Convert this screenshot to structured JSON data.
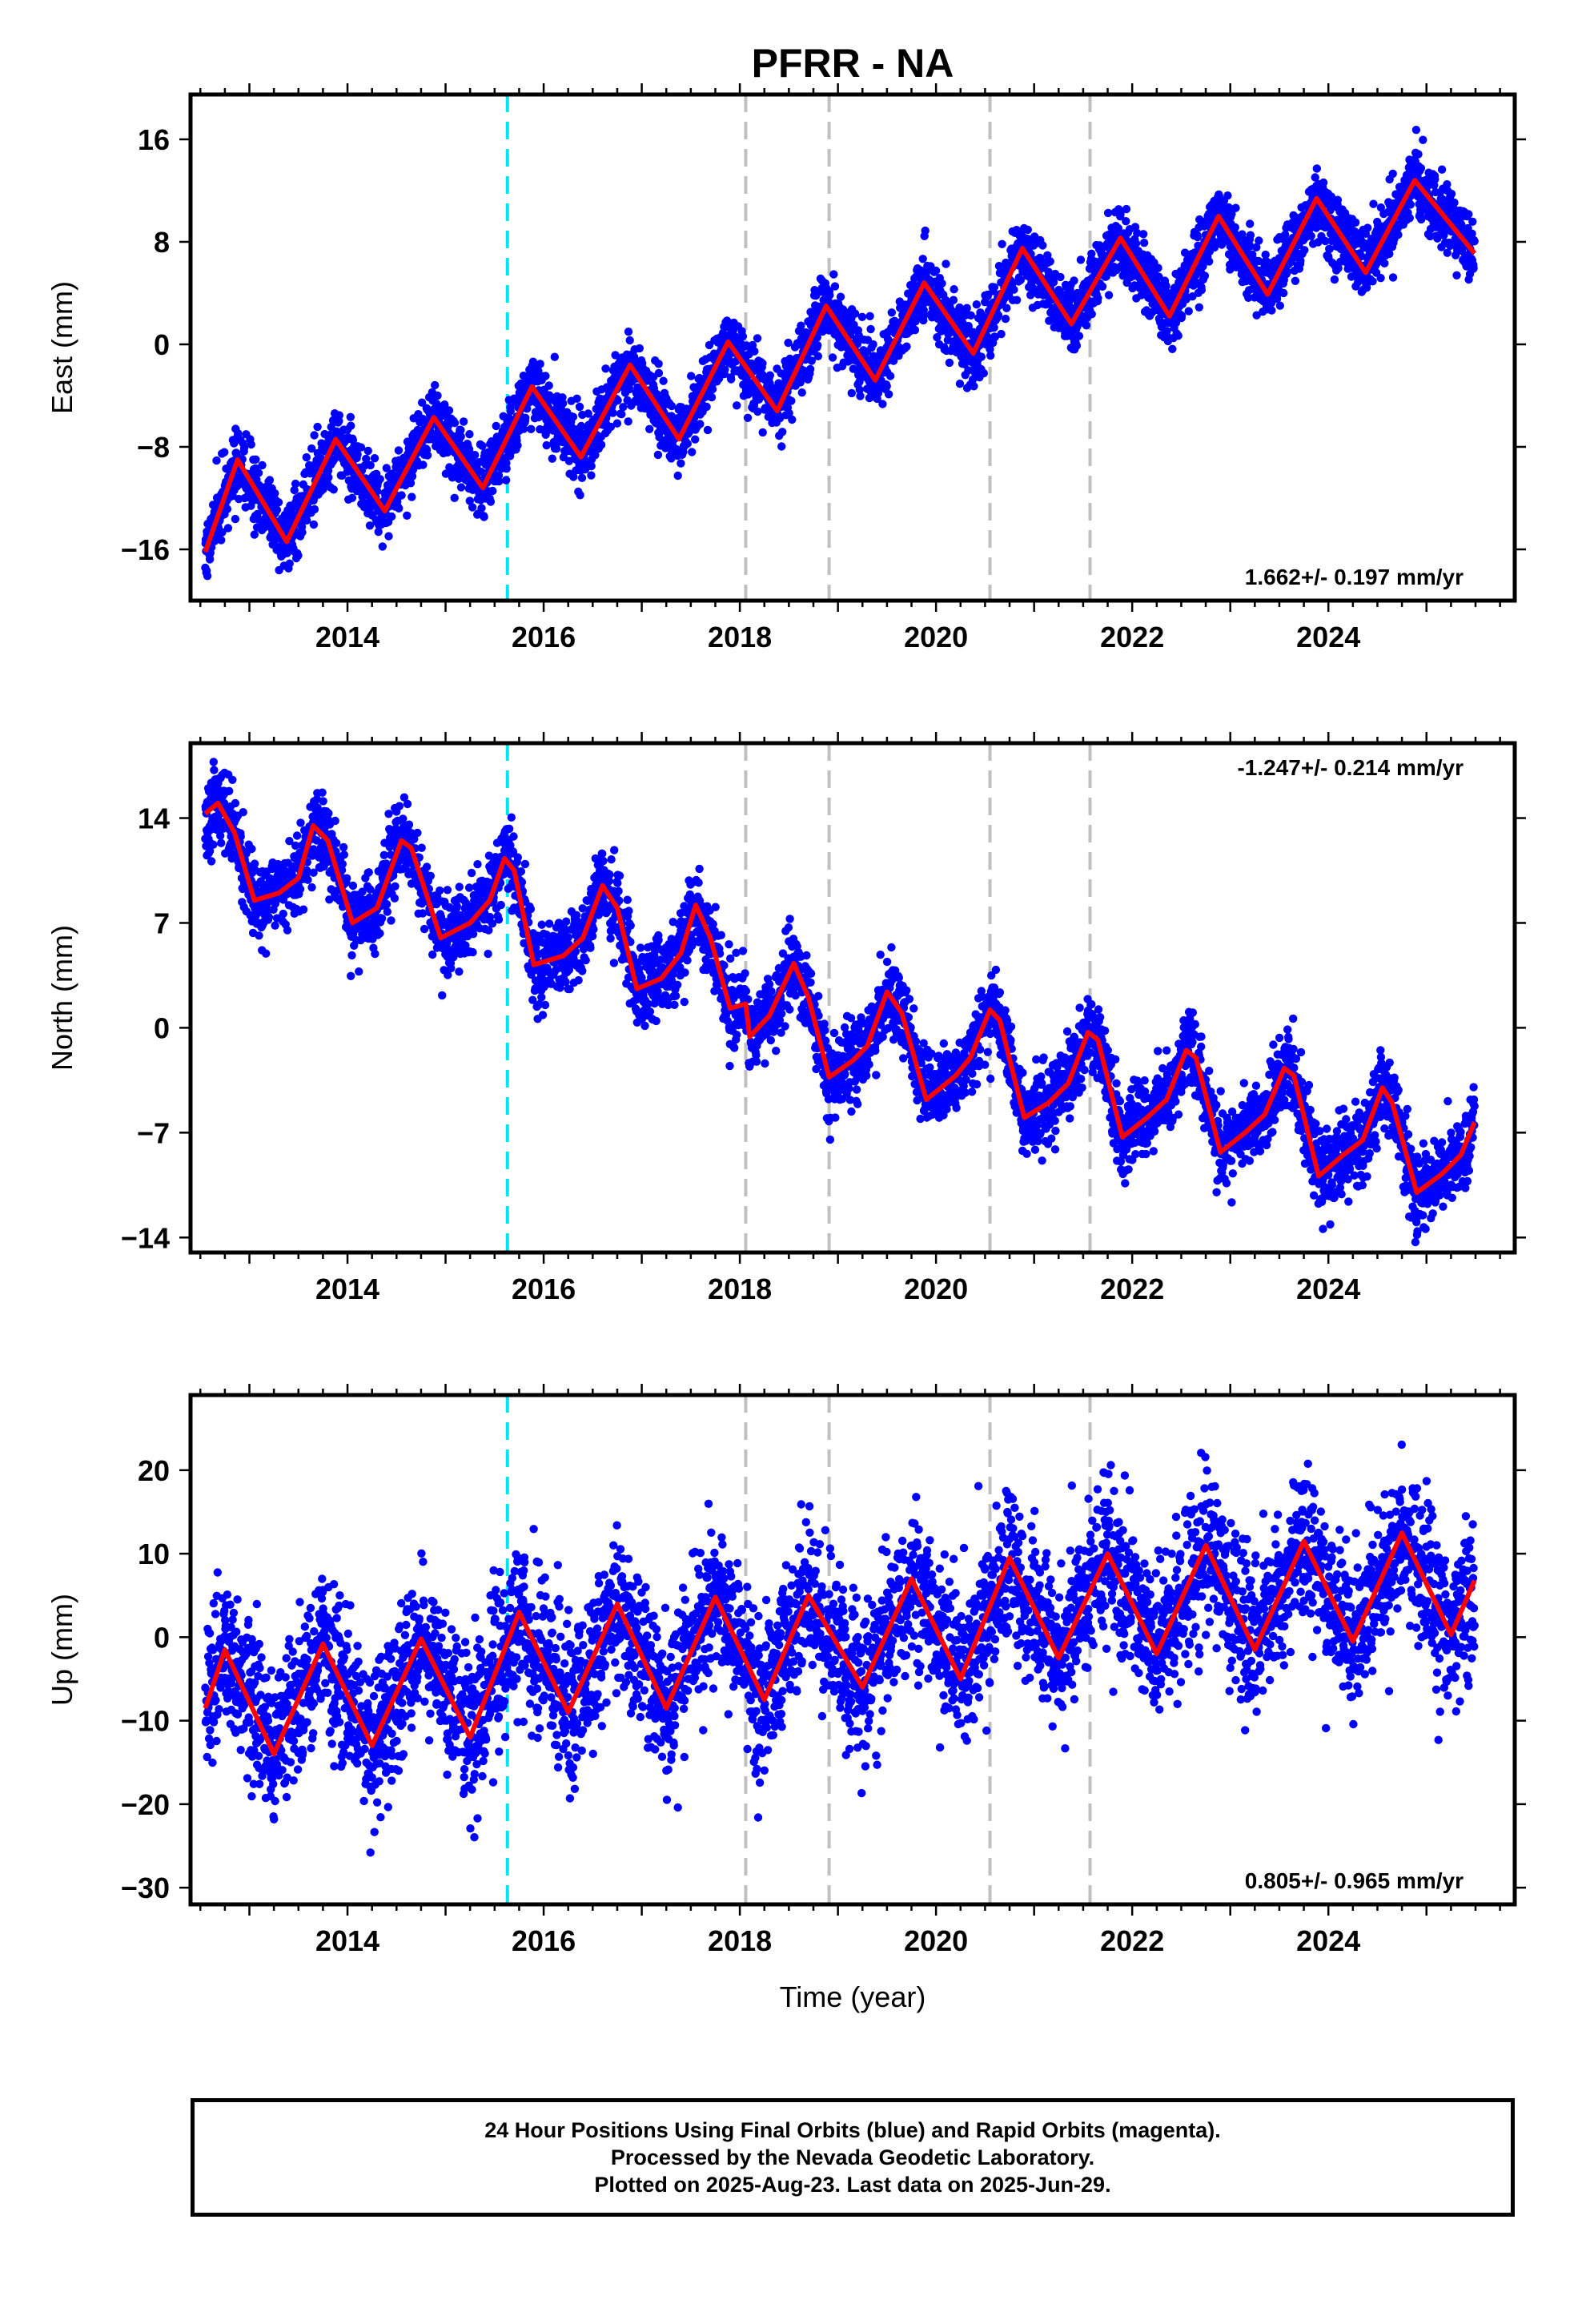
{
  "title": "PFRR - NA",
  "colors": {
    "points": "#0000ff",
    "fit": "#ff0000",
    "cyan_line": "#00e5ee",
    "gray_line": "#c0c0c0",
    "frame": "#000000"
  },
  "footer": {
    "line1": "24 Hour Positions Using Final Orbits (blue) and Rapid Orbits (magenta).",
    "line2": "Processed by the Nevada Geodetic Laboratory.",
    "line3": "Plotted on 2025-Aug-23. Last data on 2025-Jun-29."
  },
  "chart_data": [
    {
      "type": "scatter",
      "panel": "east",
      "ylabel": "East (mm)",
      "xlabel": "",
      "xlim": [
        2012.4,
        2025.9
      ],
      "ylim": [
        -20,
        19.5
      ],
      "yticks": [
        -16,
        -8,
        0,
        8,
        16
      ],
      "xticks": [
        2014,
        2016,
        2018,
        2020,
        2022,
        2024
      ],
      "rate_label": "1.662+/- 0.197 mm/yr",
      "rate_position": "bottom-right",
      "cyan_events": [
        2015.63
      ],
      "gray_events": [
        2018.06,
        2018.91,
        2020.55,
        2021.57
      ],
      "series": [
        {
          "name": "",
          "kind": "points",
          "start": 2012.55,
          "end": 2025.49,
          "offset": -14.2,
          "rate": 1.662,
          "amp": 3.1,
          "phase": 2012.88,
          "noise": 1.3,
          "seed": 11
        },
        {
          "name": "",
          "kind": "fit",
          "points": [
            [
              2012.55,
              -16.2
            ],
            [
              2012.88,
              -9.0
            ],
            [
              2013.38,
              -15.4
            ],
            [
              2013.88,
              -7.4
            ],
            [
              2014.38,
              -13.0
            ],
            [
              2014.88,
              -5.7
            ],
            [
              2015.38,
              -11.2
            ],
            [
              2015.88,
              -3.3
            ],
            [
              2016.38,
              -8.8
            ],
            [
              2016.88,
              -1.6
            ],
            [
              2017.38,
              -7.4
            ],
            [
              2017.88,
              0.2
            ],
            [
              2018.38,
              -5.2
            ],
            [
              2018.88,
              3.0
            ],
            [
              2019.38,
              -2.8
            ],
            [
              2019.88,
              4.8
            ],
            [
              2020.38,
              -0.7
            ],
            [
              2020.88,
              7.5
            ],
            [
              2021.38,
              1.6
            ],
            [
              2021.88,
              8.3
            ],
            [
              2022.38,
              2.2
            ],
            [
              2022.88,
              10.0
            ],
            [
              2023.38,
              3.9
            ],
            [
              2023.88,
              11.4
            ],
            [
              2024.38,
              5.6
            ],
            [
              2024.88,
              12.8
            ],
            [
              2025.49,
              7.1
            ]
          ]
        }
      ]
    },
    {
      "type": "scatter",
      "panel": "north",
      "ylabel": "North (mm)",
      "xlabel": "",
      "xlim": [
        2012.4,
        2025.9
      ],
      "ylim": [
        -15,
        19
      ],
      "yticks": [
        -14,
        -7,
        0,
        7,
        14
      ],
      "xticks": [
        2014,
        2016,
        2018,
        2020,
        2022,
        2024
      ],
      "rate_label": "-1.247+/- 0.214 mm/yr",
      "rate_position": "top-right",
      "cyan_events": [
        2015.63
      ],
      "gray_events": [
        2018.06,
        2018.91,
        2020.55,
        2021.57
      ],
      "series": [
        {
          "name": "",
          "kind": "points",
          "start": 2012.55,
          "end": 2025.49,
          "offset": 10.5,
          "rate": -1.247,
          "amp": 2.8,
          "phase": 2012.6,
          "noise": 1.3,
          "seed": 23
        },
        {
          "name": "",
          "kind": "fit",
          "points": [
            [
              2012.55,
              14.3
            ],
            [
              2012.68,
              15.0
            ],
            [
              2012.85,
              13.0
            ],
            [
              2013.05,
              8.5
            ],
            [
              2013.3,
              9.0
            ],
            [
              2013.5,
              10.0
            ],
            [
              2013.65,
              13.5
            ],
            [
              2013.8,
              12.5
            ],
            [
              2014.05,
              7.0
            ],
            [
              2014.3,
              8.0
            ],
            [
              2014.55,
              12.5
            ],
            [
              2014.65,
              12.0
            ],
            [
              2014.95,
              6.0
            ],
            [
              2015.25,
              7.0
            ],
            [
              2015.45,
              8.5
            ],
            [
              2015.6,
              11.3
            ],
            [
              2015.7,
              10.5
            ],
            [
              2015.9,
              4.2
            ],
            [
              2016.2,
              4.8
            ],
            [
              2016.4,
              6.0
            ],
            [
              2016.6,
              9.5
            ],
            [
              2016.75,
              8.0
            ],
            [
              2016.95,
              2.6
            ],
            [
              2017.2,
              3.3
            ],
            [
              2017.4,
              5.0
            ],
            [
              2017.55,
              8.2
            ],
            [
              2017.7,
              6.0
            ],
            [
              2017.9,
              1.3
            ],
            [
              2018.06,
              1.6
            ],
            [
              2018.1,
              -0.6
            ],
            [
              2018.3,
              0.8
            ],
            [
              2018.55,
              4.3
            ],
            [
              2018.7,
              2.0
            ],
            [
              2018.91,
              -3.3
            ],
            [
              2019.15,
              -2.2
            ],
            [
              2019.3,
              -1.2
            ],
            [
              2019.5,
              2.4
            ],
            [
              2019.65,
              1.0
            ],
            [
              2019.9,
              -4.8
            ],
            [
              2020.2,
              -3.2
            ],
            [
              2020.35,
              -2.0
            ],
            [
              2020.55,
              1.2
            ],
            [
              2020.65,
              0.5
            ],
            [
              2020.9,
              -6.0
            ],
            [
              2021.15,
              -5.0
            ],
            [
              2021.35,
              -3.7
            ],
            [
              2021.55,
              -0.3
            ],
            [
              2021.65,
              -0.8
            ],
            [
              2021.9,
              -7.3
            ],
            [
              2022.15,
              -6.0
            ],
            [
              2022.35,
              -4.8
            ],
            [
              2022.55,
              -1.5
            ],
            [
              2022.65,
              -2.0
            ],
            [
              2022.9,
              -8.3
            ],
            [
              2023.15,
              -7.0
            ],
            [
              2023.35,
              -5.8
            ],
            [
              2023.55,
              -2.7
            ],
            [
              2023.65,
              -3.2
            ],
            [
              2023.9,
              -9.9
            ],
            [
              2024.15,
              -8.5
            ],
            [
              2024.35,
              -7.5
            ],
            [
              2024.55,
              -4.0
            ],
            [
              2024.65,
              -5.0
            ],
            [
              2024.9,
              -11.0
            ],
            [
              2025.15,
              -9.8
            ],
            [
              2025.35,
              -8.5
            ],
            [
              2025.49,
              -6.3
            ]
          ]
        }
      ]
    },
    {
      "type": "scatter",
      "panel": "up",
      "ylabel": "Up (mm)",
      "xlabel": "Time (year)",
      "xlim": [
        2012.4,
        2025.9
      ],
      "ylim": [
        -32,
        29
      ],
      "yticks": [
        -30,
        -20,
        -10,
        0,
        10,
        20
      ],
      "xticks": [
        2014,
        2016,
        2018,
        2020,
        2022,
        2024
      ],
      "rate_label": "0.805+/- 0.965 mm/yr",
      "rate_position": "bottom-right",
      "cyan_events": [
        2015.63
      ],
      "gray_events": [
        2018.06,
        2018.91,
        2020.55,
        2021.57
      ],
      "series": [
        {
          "name": "",
          "kind": "points",
          "start": 2012.55,
          "end": 2025.49,
          "offset": -7.0,
          "rate": 0.805,
          "amp": 6.8,
          "phase": 2012.75,
          "noise": 4.5,
          "seed": 37
        },
        {
          "name": "",
          "kind": "fit",
          "points": [
            [
              2012.55,
              -8.5
            ],
            [
              2012.75,
              -1.5
            ],
            [
              2013.25,
              -14.0
            ],
            [
              2013.75,
              -0.8
            ],
            [
              2014.25,
              -13.0
            ],
            [
              2014.75,
              -0.2
            ],
            [
              2015.25,
              -12.0
            ],
            [
              2015.75,
              3.0
            ],
            [
              2016.25,
              -9.0
            ],
            [
              2016.75,
              4.0
            ],
            [
              2017.25,
              -8.5
            ],
            [
              2017.75,
              4.8
            ],
            [
              2018.25,
              -7.5
            ],
            [
              2018.7,
              5.0
            ],
            [
              2019.25,
              -6.0
            ],
            [
              2019.75,
              7.0
            ],
            [
              2020.25,
              -5.0
            ],
            [
              2020.75,
              9.5
            ],
            [
              2021.25,
              -2.5
            ],
            [
              2021.75,
              10.0
            ],
            [
              2022.25,
              -2.0
            ],
            [
              2022.75,
              11.0
            ],
            [
              2023.25,
              -1.5
            ],
            [
              2023.75,
              11.5
            ],
            [
              2024.25,
              -0.5
            ],
            [
              2024.75,
              12.5
            ],
            [
              2025.25,
              0.3
            ],
            [
              2025.49,
              6.8
            ]
          ]
        }
      ]
    }
  ]
}
